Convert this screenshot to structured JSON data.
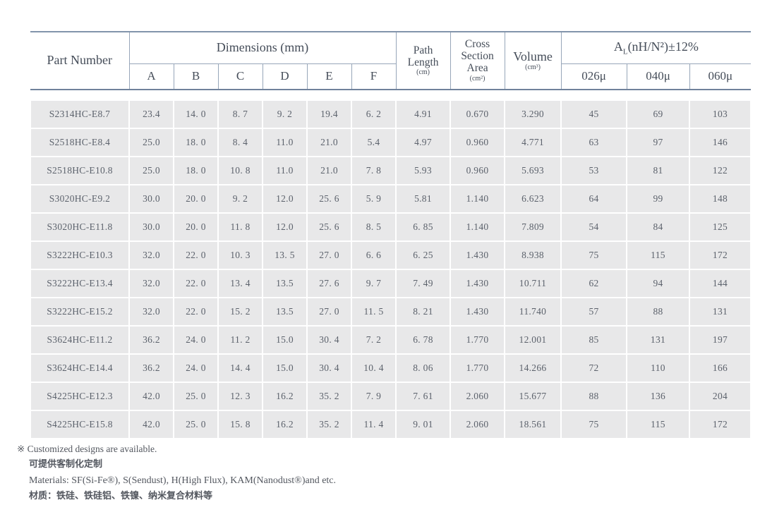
{
  "colors": {
    "border_thin": "#97a6b9",
    "border_thick": "#70829b",
    "cell_background": "#e8e8e9",
    "header_text": "#454d59",
    "cell_text": "#5c626c"
  },
  "table": {
    "header": {
      "part_number": "Part Number",
      "dimensions": "Dimensions (mm)",
      "dim_cols": [
        "A",
        "B",
        "C",
        "D",
        "E",
        "F"
      ],
      "path_length_line1": "Path",
      "path_length_line2": "Length",
      "path_length_unit": "(cm)",
      "cross_line1": "Cross",
      "cross_line2": "Section",
      "cross_line3": "Area",
      "cross_unit": "(cm²)",
      "volume": "Volume",
      "volume_unit": "(cm³)",
      "al_a": "A",
      "al_sub": "L",
      "al_rest": "(nH/N²)±12%",
      "al_cols": [
        "026μ",
        "040μ",
        "060μ"
      ]
    },
    "rows": [
      [
        "S2314HC-E8.7",
        "23.4",
        "14. 0",
        "8. 7",
        "9. 2",
        "19.4",
        "6. 2",
        "4.91",
        "0.670",
        "3.290",
        "45",
        "69",
        "103"
      ],
      [
        "S2518HC-E8.4",
        "25.0",
        "18. 0",
        "8. 4",
        "11.0",
        "21.0",
        "5.4",
        "4.97",
        "0.960",
        "4.771",
        "63",
        "97",
        "146"
      ],
      [
        "S2518HC-E10.8",
        "25.0",
        "18. 0",
        "10. 8",
        "11.0",
        "21.0",
        "7. 8",
        "5.93",
        "0.960",
        "5.693",
        "53",
        "81",
        "122"
      ],
      [
        "S3020HC-E9.2",
        "30.0",
        "20. 0",
        "9. 2",
        "12.0",
        "25. 6",
        "5. 9",
        "5.81",
        "1.140",
        "6.623",
        "64",
        "99",
        "148"
      ],
      [
        "S3020HC-E11.8",
        "30.0",
        "20. 0",
        "11. 8",
        "12.0",
        "25. 6",
        "8. 5",
        "6. 85",
        "1.140",
        "7.809",
        "54",
        "84",
        "125"
      ],
      [
        "S3222HC-E10.3",
        "32.0",
        "22. 0",
        "10. 3",
        "13. 5",
        "27. 0",
        "6. 6",
        "6. 25",
        "1.430",
        "8.938",
        "75",
        "115",
        "172"
      ],
      [
        "S3222HC-E13.4",
        "32.0",
        "22. 0",
        "13. 4",
        "13.5",
        "27. 6",
        "9. 7",
        "7. 49",
        "1.430",
        "10.711",
        "62",
        "94",
        "144"
      ],
      [
        "S3222HC-E15.2",
        "32.0",
        "22. 0",
        "15. 2",
        "13.5",
        "27. 0",
        "11. 5",
        "8. 21",
        "1.430",
        "11.740",
        "57",
        "88",
        "131"
      ],
      [
        "S3624HC-E11.2",
        "36.2",
        "24. 0",
        "11. 2",
        "15.0",
        "30. 4",
        "7. 2",
        "6. 78",
        "1.770",
        "12.001",
        "85",
        "131",
        "197"
      ],
      [
        "S3624HC-E14.4",
        "36.2",
        "24. 0",
        "14. 4",
        "15.0",
        "30. 4",
        "10. 4",
        "8. 06",
        "1.770",
        "14.266",
        "72",
        "110",
        "166"
      ],
      [
        "S4225HC-E12.3",
        "42.0",
        "25. 0",
        "12. 3",
        "16.2",
        "35. 2",
        "7. 9",
        "7. 61",
        "2.060",
        "15.677",
        "88",
        "136",
        "204"
      ],
      [
        "S4225HC-E15.8",
        "42.0",
        "25. 0",
        "15. 8",
        "16.2",
        "35. 2",
        "11. 4",
        "9. 01",
        "2.060",
        "18.561",
        "75",
        "115",
        "172"
      ]
    ]
  },
  "notes": {
    "customized_en": "※ Customized designs are available.",
    "customized_zh": "可提供客制化定制",
    "materials_en": "Materials: SF(Si-Fe®), S(Sendust), H(High Flux), KAM(Nanodust®)and etc.",
    "materials_zh": "材质：铁硅、铁硅铝、铁镍、纳米复合材料等"
  }
}
